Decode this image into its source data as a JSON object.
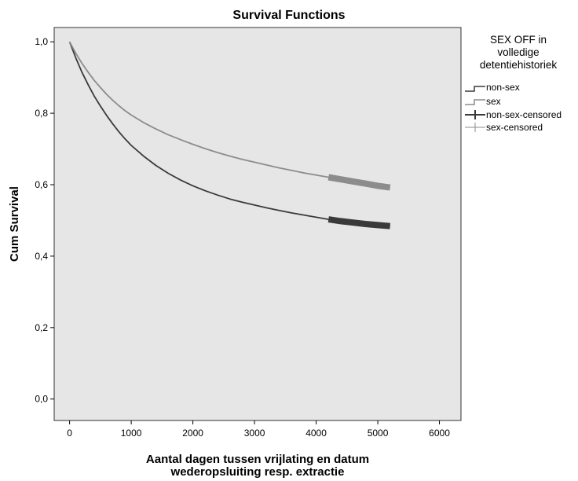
{
  "chart_data": {
    "type": "line",
    "title": "Survival Functions",
    "xlabel_lines": [
      "Aantal dagen tussen vrijlating en datum",
      "wederopsluiting resp. extractie"
    ],
    "ylabel": "Cum Survival",
    "xlim": [
      -250,
      6350
    ],
    "ylim": [
      -0.06,
      1.04
    ],
    "xticks": [
      0,
      1000,
      2000,
      3000,
      4000,
      5000,
      6000
    ],
    "xtick_labels": [
      "0",
      "1000",
      "2000",
      "3000",
      "4000",
      "5000",
      "6000"
    ],
    "yticks": [
      0.0,
      0.2,
      0.4,
      0.6,
      0.8,
      1.0
    ],
    "ytick_labels": [
      "0,0",
      "0,2",
      "0,4",
      "0,6",
      "0,8",
      "1,0"
    ],
    "grid": false,
    "legend_position": "right",
    "legend_title_lines": [
      "SEX OFF in",
      "volledige",
      "detentiehistoriek"
    ],
    "series": [
      {
        "name": "non-sex",
        "color": "#3a3a3a",
        "x": [
          0,
          100,
          200,
          300,
          400,
          500,
          600,
          700,
          800,
          900,
          1000,
          1200,
          1400,
          1600,
          1800,
          2000,
          2200,
          2400,
          2600,
          2800,
          3000,
          3200,
          3400,
          3600,
          3800,
          4000,
          4200,
          4400,
          4600,
          4800,
          5000,
          5200
        ],
        "y": [
          1.0,
          0.955,
          0.915,
          0.88,
          0.848,
          0.82,
          0.794,
          0.77,
          0.748,
          0.728,
          0.71,
          0.68,
          0.654,
          0.632,
          0.613,
          0.597,
          0.583,
          0.571,
          0.56,
          0.551,
          0.543,
          0.535,
          0.528,
          0.521,
          0.515,
          0.509,
          0.503,
          0.498,
          0.494,
          0.49,
          0.487,
          0.484
        ]
      },
      {
        "name": "sex",
        "color": "#8c8c8c",
        "x": [
          0,
          100,
          200,
          300,
          400,
          500,
          600,
          700,
          800,
          900,
          1000,
          1200,
          1400,
          1600,
          1800,
          2000,
          2200,
          2400,
          2600,
          2800,
          3000,
          3200,
          3400,
          3600,
          3800,
          4000,
          4200,
          4400,
          4600,
          4800,
          5000,
          5200
        ],
        "y": [
          1.0,
          0.968,
          0.94,
          0.915,
          0.892,
          0.872,
          0.853,
          0.836,
          0.821,
          0.807,
          0.795,
          0.774,
          0.756,
          0.74,
          0.726,
          0.713,
          0.701,
          0.69,
          0.68,
          0.671,
          0.663,
          0.655,
          0.647,
          0.64,
          0.633,
          0.627,
          0.621,
          0.615,
          0.609,
          0.603,
          0.597,
          0.592
        ]
      }
    ],
    "censored_series": [
      {
        "name": "non-sex-censored",
        "color": "#3a3a3a",
        "x_range": [
          4100,
          5200
        ],
        "of_series": "non-sex"
      },
      {
        "name": "sex-censored",
        "color": "#8c8c8c",
        "x_range": [
          4100,
          5200
        ],
        "of_series": "sex"
      }
    ]
  }
}
